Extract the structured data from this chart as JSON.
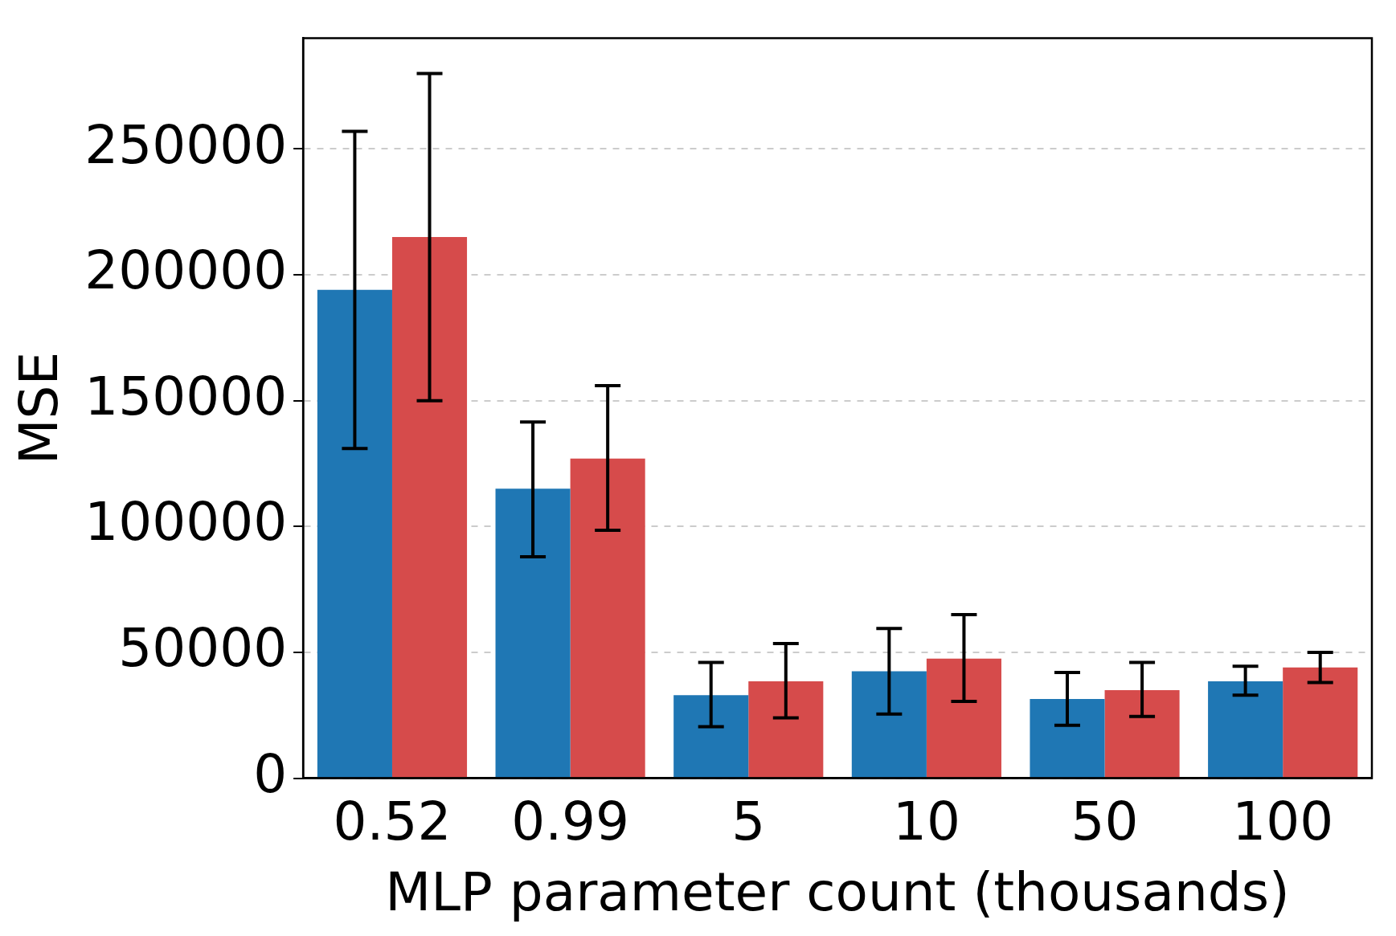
{
  "chart_data": {
    "type": "bar",
    "xlabel": "MLP parameter count (thousands)",
    "ylabel": "MSE",
    "categories": [
      "0.52",
      "0.99",
      "5",
      "10",
      "50",
      "100"
    ],
    "series": [
      {
        "color": "#1f77b4",
        "values": [
          194000,
          115000,
          33000,
          42500,
          31500,
          38500
        ],
        "errors": [
          [
            131000,
            257000
          ],
          [
            88000,
            141500
          ],
          [
            20500,
            46000
          ],
          [
            25500,
            59500
          ],
          [
            21000,
            42000
          ],
          [
            33000,
            44500
          ]
        ]
      },
      {
        "color": "#d64b4b",
        "values": [
          215000,
          127000,
          38500,
          47500,
          35000,
          44000
        ],
        "errors": [
          [
            150000,
            280000
          ],
          [
            98500,
            156000
          ],
          [
            24000,
            53500
          ],
          [
            30500,
            65000
          ],
          [
            24500,
            46000
          ],
          [
            38000,
            50000
          ]
        ]
      }
    ],
    "ylim": [
      0,
      294000
    ],
    "yticks": [
      0,
      50000,
      100000,
      150000,
      200000,
      250000
    ],
    "grid": "y",
    "legend": false
  }
}
